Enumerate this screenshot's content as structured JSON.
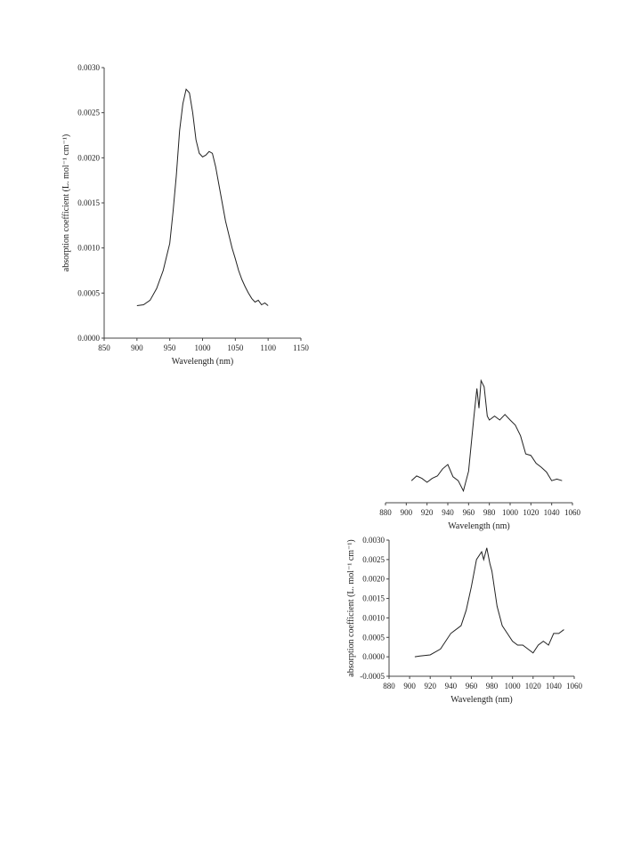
{
  "chart_data": [
    {
      "type": "line",
      "x_label": "Wavelength (nm)",
      "y_label": "absorption coefficient (L. mol⁻¹ cm⁻¹)",
      "xlim": [
        850,
        1150
      ],
      "xticks": [
        850,
        900,
        950,
        1000,
        1050,
        1100,
        1150
      ],
      "ylim": [
        0,
        0.003
      ],
      "yticks": [
        {
          "value": 0,
          "label": "0.0000"
        },
        {
          "value": 0.0005,
          "label": "0.0005"
        },
        {
          "value": 0.001,
          "label": "0.0010"
        },
        {
          "value": 0.0015,
          "label": "0.0015"
        },
        {
          "value": 0.002,
          "label": "0.0020"
        },
        {
          "value": 0.0025,
          "label": "0.0025"
        },
        {
          "value": 0.003,
          "label": "0.0030"
        }
      ],
      "x": [
        900,
        910,
        920,
        930,
        940,
        945,
        950,
        955,
        960,
        965,
        970,
        975,
        980,
        985,
        990,
        995,
        1000,
        1005,
        1010,
        1015,
        1020,
        1025,
        1030,
        1035,
        1040,
        1045,
        1050,
        1055,
        1060,
        1065,
        1070,
        1075,
        1080,
        1085,
        1090,
        1095,
        1100
      ],
      "series": [
        {
          "color": "#222222",
          "values": [
            0.00036,
            0.00037,
            0.00042,
            0.00055,
            0.00075,
            0.0009,
            0.00105,
            0.0014,
            0.0018,
            0.0023,
            0.0026,
            0.00276,
            0.00272,
            0.0025,
            0.0022,
            0.00205,
            0.00201,
            0.00203,
            0.00207,
            0.00205,
            0.0019,
            0.0017,
            0.0015,
            0.0013,
            0.00115,
            0.001,
            0.00088,
            0.00075,
            0.00065,
            0.00057,
            0.0005,
            0.00044,
            0.0004,
            0.00042,
            0.00037,
            0.00039,
            0.00036
          ]
        }
      ]
    },
    {
      "type": "line",
      "x_label": "Wavelength (nm)",
      "xlim": [
        880,
        1060
      ],
      "xticks": [
        880,
        900,
        920,
        940,
        960,
        980,
        1000,
        1020,
        1040,
        1060
      ],
      "ylim": [
        -0.0005,
        0.003
      ],
      "x": [
        905,
        910,
        915,
        920,
        925,
        930,
        935,
        940,
        945,
        950,
        955,
        960,
        965,
        968,
        970,
        972,
        975,
        978,
        980,
        985,
        990,
        995,
        1000,
        1005,
        1010,
        1015,
        1020,
        1025,
        1030,
        1035,
        1040,
        1045,
        1050
      ],
      "series": [
        {
          "color": "#222222",
          "values": [
            6e-05,
            0.00018,
            0.00012,
            2e-05,
            0.00012,
            0.00018,
            0.00036,
            0.00047,
            0.00016,
            6e-05,
            -0.0002,
            0.0003,
            0.00165,
            0.0024,
            0.0019,
            0.0026,
            0.00244,
            0.0017,
            0.0016,
            0.0017,
            0.0016,
            0.00174,
            0.0016,
            0.00147,
            0.0012,
            0.00074,
            0.0007,
            0.0005,
            0.0004,
            0.00028,
            6e-05,
            0.0001,
            6e-05
          ]
        }
      ]
    },
    {
      "type": "line",
      "x_label": "Wavelength (nm)",
      "y_label": "absorption coefficient (L. mol⁻¹ cm⁻¹)",
      "xlim": [
        880,
        1060
      ],
      "xticks": [
        880,
        900,
        920,
        940,
        960,
        980,
        1000,
        1020,
        1040,
        1060
      ],
      "ylim": [
        -0.0005,
        0.003
      ],
      "yticks": [
        {
          "value": -0.0005,
          "label": "-0.0005"
        },
        {
          "value": 0,
          "label": "0.0000"
        },
        {
          "value": 0.0005,
          "label": "0.0005"
        },
        {
          "value": 0.001,
          "label": "0.0010"
        },
        {
          "value": 0.0015,
          "label": "0.0015"
        },
        {
          "value": 0.002,
          "label": "0.0020"
        },
        {
          "value": 0.0025,
          "label": "0.0025"
        },
        {
          "value": 0.003,
          "label": "0.0030"
        }
      ],
      "x": [
        905,
        910,
        920,
        930,
        940,
        950,
        955,
        960,
        965,
        970,
        972,
        975,
        978,
        980,
        985,
        990,
        995,
        1000,
        1005,
        1010,
        1015,
        1020,
        1025,
        1030,
        1035,
        1040,
        1045,
        1050
      ],
      "series": [
        {
          "color": "#222222",
          "values": [
            0.0,
            2e-05,
            5e-05,
            0.0002,
            0.0006,
            0.0008,
            0.0012,
            0.0018,
            0.0025,
            0.0027,
            0.0025,
            0.0028,
            0.0024,
            0.0022,
            0.0013,
            0.0008,
            0.0006,
            0.0004,
            0.0003,
            0.0003,
            0.0002,
            0.0001,
            0.0003,
            0.0004,
            0.0003,
            0.0006,
            0.0006,
            0.0007
          ]
        }
      ]
    }
  ]
}
